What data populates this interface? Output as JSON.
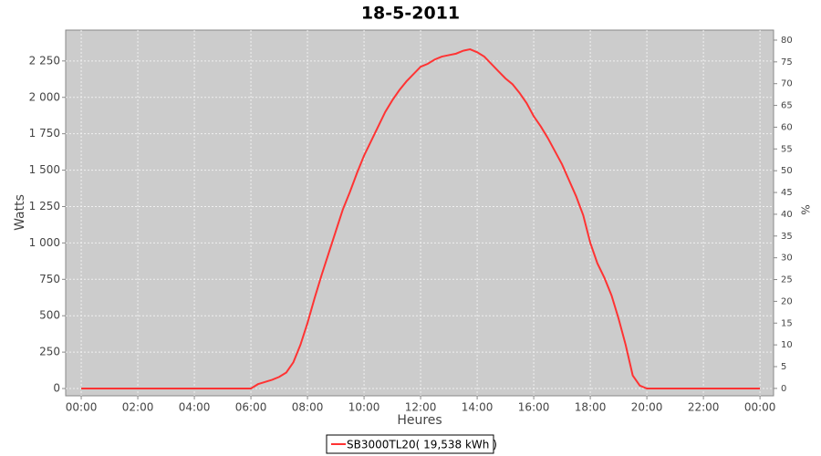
{
  "chart_data": {
    "type": "line",
    "title": "18-5-2011",
    "x_label": "Heures",
    "y_label": "Watts",
    "y2_label": "%",
    "x": [
      0,
      6,
      6.25,
      6.5,
      6.75,
      7,
      7.25,
      7.5,
      7.75,
      8,
      8.25,
      8.5,
      8.75,
      9,
      9.25,
      9.5,
      9.75,
      10,
      10.25,
      10.5,
      10.75,
      11,
      11.25,
      11.5,
      11.75,
      12,
      12.25,
      12.5,
      12.75,
      13,
      13.25,
      13.5,
      13.75,
      14,
      14.25,
      14.5,
      14.75,
      15,
      15.25,
      15.5,
      15.75,
      16,
      16.25,
      16.5,
      16.75,
      17,
      17.25,
      17.5,
      17.75,
      18,
      18.25,
      18.5,
      18.75,
      19,
      19.25,
      19.5,
      19.75,
      20,
      24
    ],
    "series": [
      {
        "name": "SB3000TL20( 19,538 kWh )",
        "color": "#ff3333",
        "values": [
          0,
          0,
          30,
          45,
          60,
          80,
          110,
          180,
          300,
          450,
          620,
          780,
          930,
          1080,
          1230,
          1350,
          1480,
          1600,
          1700,
          1800,
          1900,
          1980,
          2050,
          2110,
          2160,
          2210,
          2230,
          2260,
          2280,
          2290,
          2300,
          2320,
          2330,
          2310,
          2280,
          2230,
          2180,
          2130,
          2090,
          2030,
          1960,
          1870,
          1800,
          1720,
          1630,
          1540,
          1430,
          1320,
          1190,
          1000,
          860,
          760,
          640,
          480,
          300,
          90,
          20,
          0,
          0
        ]
      }
    ],
    "xlim": [
      -0.55,
      24.48
    ],
    "xticks": [
      {
        "value": 0,
        "label": "00:00"
      },
      {
        "value": 2,
        "label": "02:00"
      },
      {
        "value": 4,
        "label": "04:00"
      },
      {
        "value": 6,
        "label": "06:00"
      },
      {
        "value": 8,
        "label": "08:00"
      },
      {
        "value": 10,
        "label": "10:00"
      },
      {
        "value": 12,
        "label": "12:00"
      },
      {
        "value": 14,
        "label": "14:00"
      },
      {
        "value": 16,
        "label": "16:00"
      },
      {
        "value": 18,
        "label": "18:00"
      },
      {
        "value": 20,
        "label": "20:00"
      },
      {
        "value": 22,
        "label": "22:00"
      },
      {
        "value": 24,
        "label": "00:00"
      }
    ],
    "ylim": [
      -50,
      2462
    ],
    "yticks": [
      0,
      250,
      500,
      750,
      {
        "value": 1000,
        "label": "1 000"
      },
      {
        "value": 1250,
        "label": "1 250"
      },
      {
        "value": 1500,
        "label": "1 500"
      },
      {
        "value": 1750,
        "label": "1 750"
      },
      {
        "value": 2000,
        "label": "2 000"
      },
      {
        "value": 2250,
        "label": "2 250"
      }
    ],
    "y2lim": [
      -1.7,
      82.3
    ],
    "y2ticks": [
      0,
      5,
      10,
      15,
      20,
      25,
      30,
      35,
      40,
      45,
      50,
      55,
      60,
      65,
      70,
      75,
      80
    ],
    "grid": true,
    "legend": "bottom"
  }
}
